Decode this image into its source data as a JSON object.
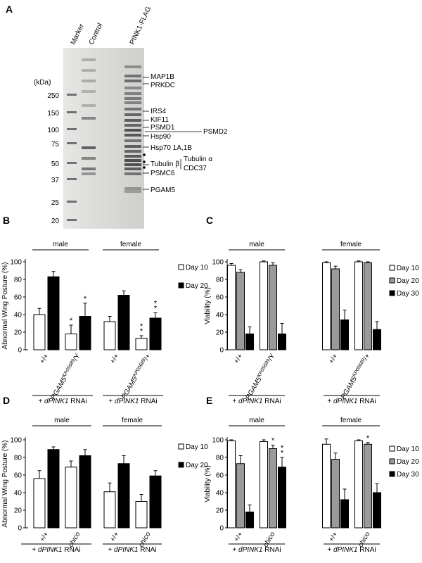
{
  "panels": {
    "A": {
      "label": "A",
      "lanes": [
        "Marker",
        "Control",
        "PINK1-FLAG"
      ],
      "unit": "(kDa)",
      "markers": [
        "250",
        "150",
        "100",
        "75",
        "50",
        "37",
        "25",
        "20"
      ],
      "proteins": [
        "MAP1B",
        "PRKDC",
        "IRS4",
        "KIF11",
        "PSMD1",
        "Hsp90",
        "PSMD2",
        "Hsp70 1A,1B",
        "Tubulin α",
        "Tubulin β",
        "CDC37",
        "PSMC6",
        "PGAM5"
      ]
    },
    "B": {
      "label": "B"
    },
    "C": {
      "label": "C"
    },
    "D": {
      "label": "D"
    },
    "E": {
      "label": "E"
    }
  },
  "colors": {
    "white_bar": "#ffffff",
    "gray_bar": "#9a9a9a",
    "black_bar": "#000000",
    "gel_bg": "#d8d8d6",
    "band": "#4a4a4a"
  },
  "chart_data": [
    {
      "panel": "B",
      "type": "bar",
      "ylabel": "Abnormal Wing Posture (%)",
      "ylim": [
        0,
        100
      ],
      "yticks": [
        0,
        20,
        40,
        60,
        80,
        100
      ],
      "groups": [
        "male",
        "female"
      ],
      "categories": [
        "+/+",
        "PGAM5^KP05689/Y",
        "+/+",
        "PGAM5^KP05689/+"
      ],
      "group_of_category": [
        0,
        0,
        1,
        1
      ],
      "footer": "+ dPINK1 RNAi",
      "series": [
        {
          "name": "Day 10",
          "color": "white",
          "values": [
            40,
            18,
            32,
            13
          ],
          "errors": [
            7,
            10,
            6,
            3
          ],
          "stars": [
            "",
            "*",
            "",
            "**"
          ]
        },
        {
          "name": "Day 20",
          "color": "black",
          "values": [
            83,
            38,
            62,
            36
          ],
          "errors": [
            6,
            15,
            5,
            6
          ],
          "stars": [
            "",
            "*",
            "",
            "**"
          ]
        }
      ]
    },
    {
      "panel": "C",
      "type": "bar",
      "ylabel": "Viability (%)",
      "ylim": [
        0,
        100
      ],
      "yticks": [
        0,
        20,
        40,
        60,
        80,
        100
      ],
      "groups": [
        "male",
        "female"
      ],
      "categories": [
        "+/+",
        "PGAM5^KP05689/Y",
        "+/+",
        "PGAM5^KP05689/+"
      ],
      "group_of_category": [
        0,
        0,
        1,
        1
      ],
      "footer": "+ dPINK1 RNAi",
      "series": [
        {
          "name": "Day 10",
          "color": "white",
          "values": [
            96,
            100,
            99,
            100
          ],
          "errors": [
            2,
            1,
            1,
            1
          ],
          "stars": [
            "",
            "",
            "",
            ""
          ]
        },
        {
          "name": "Day 20",
          "color": "gray",
          "values": [
            88,
            96,
            92,
            99
          ],
          "errors": [
            3,
            3,
            3,
            1
          ],
          "stars": [
            "",
            "",
            "",
            ""
          ]
        },
        {
          "name": "Day 30",
          "color": "black",
          "values": [
            18,
            18,
            34,
            23
          ],
          "errors": [
            8,
            12,
            11,
            9
          ],
          "stars": [
            "",
            "",
            "",
            ""
          ]
        }
      ]
    },
    {
      "panel": "D",
      "type": "bar",
      "ylabel": "Abnormal Wing Posture (%)",
      "ylim": [
        0,
        100
      ],
      "yticks": [
        0,
        20,
        40,
        60,
        80,
        100
      ],
      "groups": [
        "male",
        "female"
      ],
      "categories": [
        "+/+",
        "chico",
        "+/+",
        "chico"
      ],
      "group_of_category": [
        0,
        0,
        1,
        1
      ],
      "footer": "+ dPINK1 RNAi",
      "series": [
        {
          "name": "Day 10",
          "color": "white",
          "values": [
            56,
            69,
            41,
            30
          ],
          "errors": [
            9,
            7,
            10,
            8
          ],
          "stars": [
            "",
            "",
            "",
            ""
          ]
        },
        {
          "name": "Day 20",
          "color": "black",
          "values": [
            89,
            82,
            73,
            59
          ],
          "errors": [
            3,
            7,
            9,
            6
          ],
          "stars": [
            "",
            "",
            "",
            ""
          ]
        }
      ]
    },
    {
      "panel": "E",
      "type": "bar",
      "ylabel": "Viability (%)",
      "ylim": [
        0,
        100
      ],
      "yticks": [
        0,
        20,
        40,
        60,
        80,
        100
      ],
      "groups": [
        "male",
        "female"
      ],
      "categories": [
        "+/+",
        "chico",
        "+/+",
        "chico"
      ],
      "group_of_category": [
        0,
        0,
        1,
        1
      ],
      "footer": "+ dPINK1 RNAi",
      "series": [
        {
          "name": "Day 10",
          "color": "white",
          "values": [
            99,
            98,
            95,
            99
          ],
          "errors": [
            1,
            2,
            6,
            1
          ],
          "stars": [
            "",
            "",
            "",
            ""
          ]
        },
        {
          "name": "Day 20",
          "color": "gray",
          "values": [
            73,
            90,
            78,
            95
          ],
          "errors": [
            9,
            4,
            7,
            2
          ],
          "stars": [
            "",
            "*",
            "",
            "*"
          ]
        },
        {
          "name": "Day 30",
          "color": "black",
          "values": [
            18,
            69,
            32,
            40
          ],
          "errors": [
            8,
            11,
            12,
            10
          ],
          "stars": [
            "",
            "**",
            "",
            ""
          ]
        }
      ]
    }
  ]
}
